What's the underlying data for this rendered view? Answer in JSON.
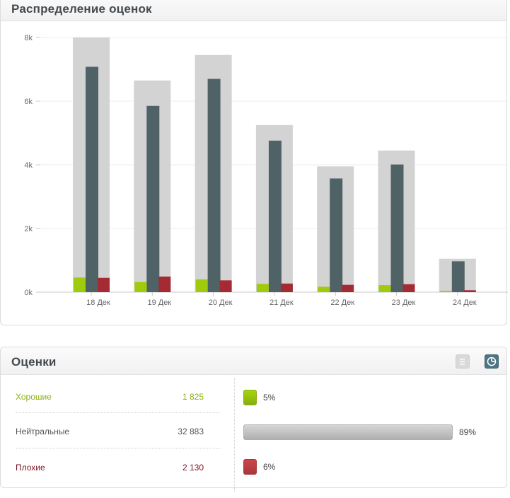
{
  "chart_panel": {
    "title": "Распределение оценок"
  },
  "chart_data": {
    "type": "bar",
    "categories": [
      "18 Дек",
      "19 Дек",
      "20 Дек",
      "21 Дек",
      "22 Дек",
      "23 Дек",
      "24 Дек"
    ],
    "series": [
      {
        "values": [
          8000,
          6650,
          7450,
          5250,
          3950,
          4450,
          1050
        ],
        "color": "#d3d3d3"
      },
      {
        "values": [
          7080,
          5850,
          6700,
          4760,
          3570,
          4010,
          970
        ],
        "color": "#4f6367"
      },
      {
        "values": [
          460,
          320,
          400,
          260,
          170,
          220,
          40
        ],
        "color": "#9fcb0a"
      },
      {
        "values": [
          450,
          490,
          370,
          270,
          230,
          250,
          60
        ],
        "color": "#a42a33"
      }
    ],
    "y_ticks": [
      "0k",
      "2k",
      "4k",
      "6k",
      "8k"
    ],
    "ylim": [
      0,
      8000
    ],
    "grid": true,
    "legend": "none"
  },
  "ratings_panel": {
    "title": "Оценки",
    "list_view_icon": "list-icon",
    "pie_view_icon": "pie-chart-icon",
    "rows": [
      {
        "label": "Хорошие",
        "count": "1 825",
        "percent": "5%",
        "fraction": 0.05,
        "color": "#8cb20c",
        "bar_color": "#a6d410"
      },
      {
        "label": "Нейтральные",
        "count": "32 883",
        "percent": "89%",
        "fraction": 0.89,
        "color": "#555555",
        "bar_color": "#d6d6d6"
      },
      {
        "label": "Плохие",
        "count": "2 130",
        "percent": "6%",
        "fraction": 0.06,
        "color": "#7a1320",
        "bar_color": "#cc4448"
      }
    ]
  }
}
